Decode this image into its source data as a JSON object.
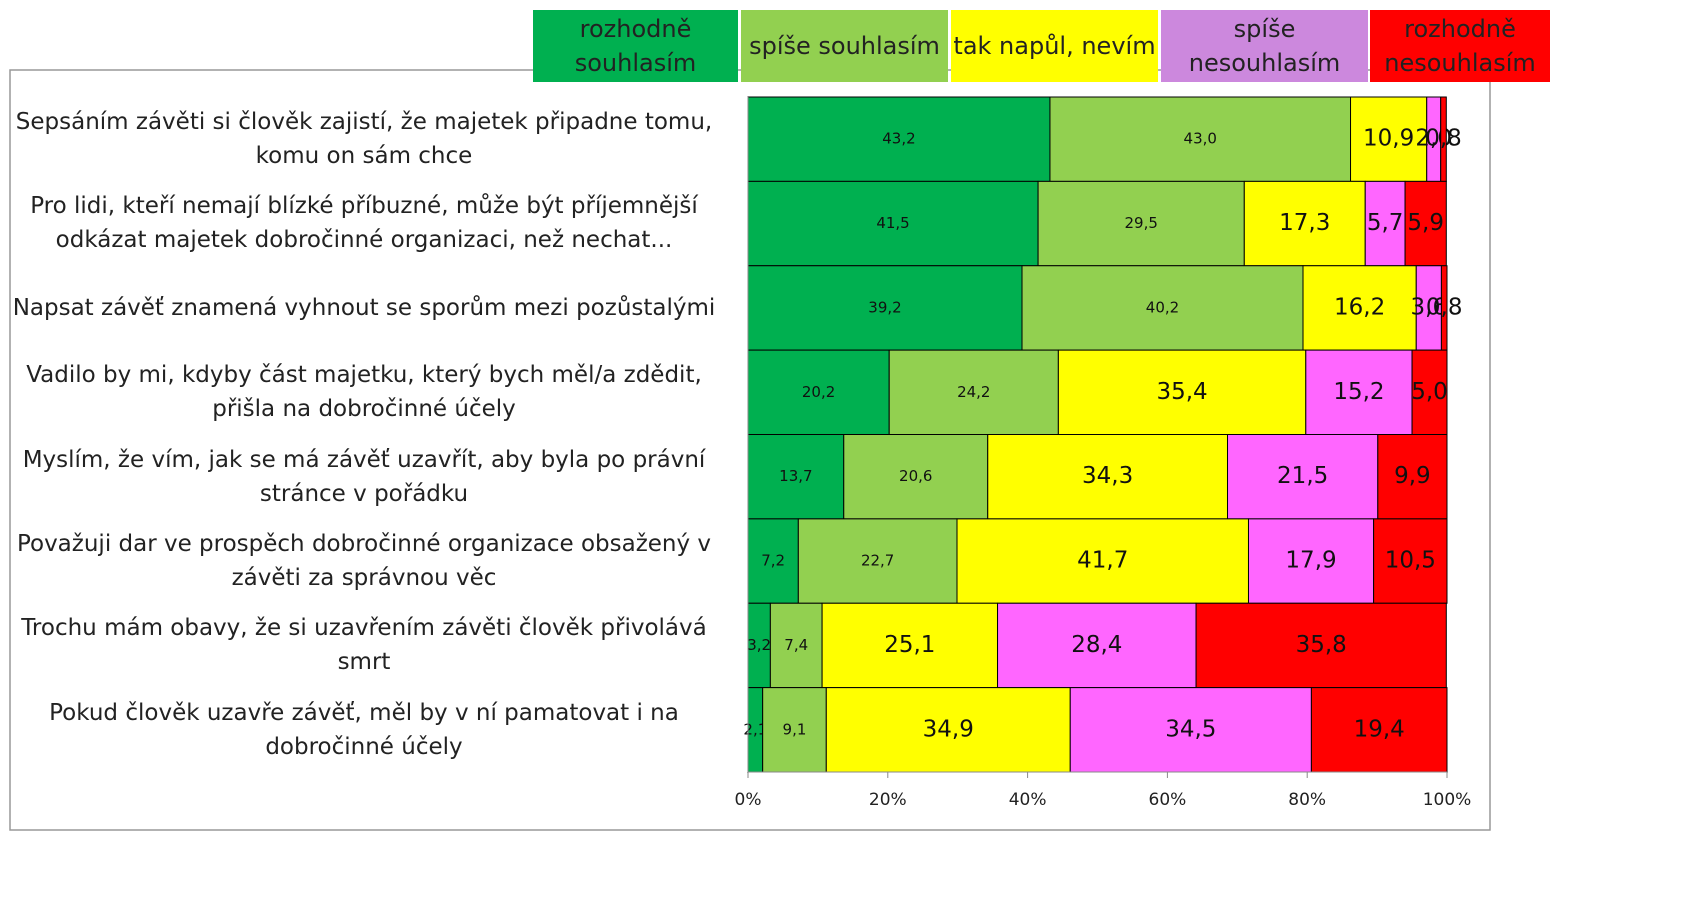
{
  "chart_data": {
    "type": "stacked_barh",
    "categories": [
      "Sepsáním závěti si člověk zajistí, že majetek připadne tomu, komu on sám chce",
      "Pro lidi, kteří nemají blízké příbuzné, může být příjemnější odkázat majetek dobročinné organizaci, než nechat...",
      "Napsat závěť znamená vyhnout se sporům mezi pozůstalými",
      "Vadilo by mi, kdyby část majetku, který bych měl/a zdědit, přišla na dobročinné účely",
      "Myslím, že vím, jak se má závěť uzavřít, aby byla po právní stránce v pořádku",
      "Považuji dar ve prospěch dobročinné organizace obsažený v závěti za správnou věc",
      "Trochu mám obavy, že si uzavřením závěti člověk přivolává smrt",
      "Pokud člověk uzavře závěť, měl by v ní pamatovat i na dobročinné účely"
    ],
    "series": [
      {
        "name": "rozhodně souhlasím",
        "color": "#00b050",
        "legend_color": "#00b050",
        "values": [
          43.2,
          41.5,
          39.2,
          20.2,
          13.7,
          7.2,
          3.2,
          2.1
        ],
        "value_labels": [
          "43,2",
          "41,5",
          "39,2",
          "20,2",
          "13,7",
          "7,2",
          "3,2",
          "2,1"
        ]
      },
      {
        "name": "spíše souhlasím",
        "color": "#92d050",
        "legend_color": "#92d050",
        "values": [
          43.0,
          29.5,
          40.2,
          24.2,
          20.6,
          22.7,
          7.4,
          9.1
        ],
        "value_labels": [
          "43,0",
          "29,5",
          "40,2",
          "24,2",
          "20,6",
          "22,7",
          "7,4",
          "9,1"
        ]
      },
      {
        "name": "tak napůl, nevím",
        "color": "#ffff00",
        "legend_color": "#ffff00",
        "values": [
          10.9,
          17.3,
          16.2,
          35.4,
          34.3,
          41.7,
          25.1,
          34.9
        ],
        "value_labels": [
          "10,9",
          "17,3",
          "16,2",
          "35,4",
          "34,3",
          "41,7",
          "25,1",
          "34,9"
        ]
      },
      {
        "name": "spíše nesouhlasím",
        "color": "#ff66ff",
        "legend_color": "#cc88dd",
        "values": [
          2.0,
          5.7,
          3.6,
          15.2,
          21.5,
          17.9,
          28.4,
          34.5
        ],
        "value_labels": [
          "2,0",
          "5,7",
          "3,6",
          "15,2",
          "21,5",
          "17,9",
          "28,4",
          "34,5"
        ]
      },
      {
        "name": "rozhodně nesouhlasím",
        "color": "#ff0000",
        "legend_color": "#ff0000",
        "values": [
          0.8,
          5.9,
          0.8,
          5.0,
          9.9,
          10.5,
          35.8,
          19.4
        ],
        "value_labels": [
          "0,8",
          "5,9",
          "0,8",
          "5,0",
          "9,9",
          "10,5",
          "35,8",
          "19,4"
        ]
      }
    ],
    "xlim": [
      0,
      100
    ],
    "xticks": [
      {
        "value": 0,
        "label": "0%"
      },
      {
        "value": 20,
        "label": "20%"
      },
      {
        "value": 40,
        "label": "40%"
      },
      {
        "value": 60,
        "label": "60%"
      },
      {
        "value": 80,
        "label": "80%"
      },
      {
        "value": 100,
        "label": "100%"
      }
    ]
  }
}
